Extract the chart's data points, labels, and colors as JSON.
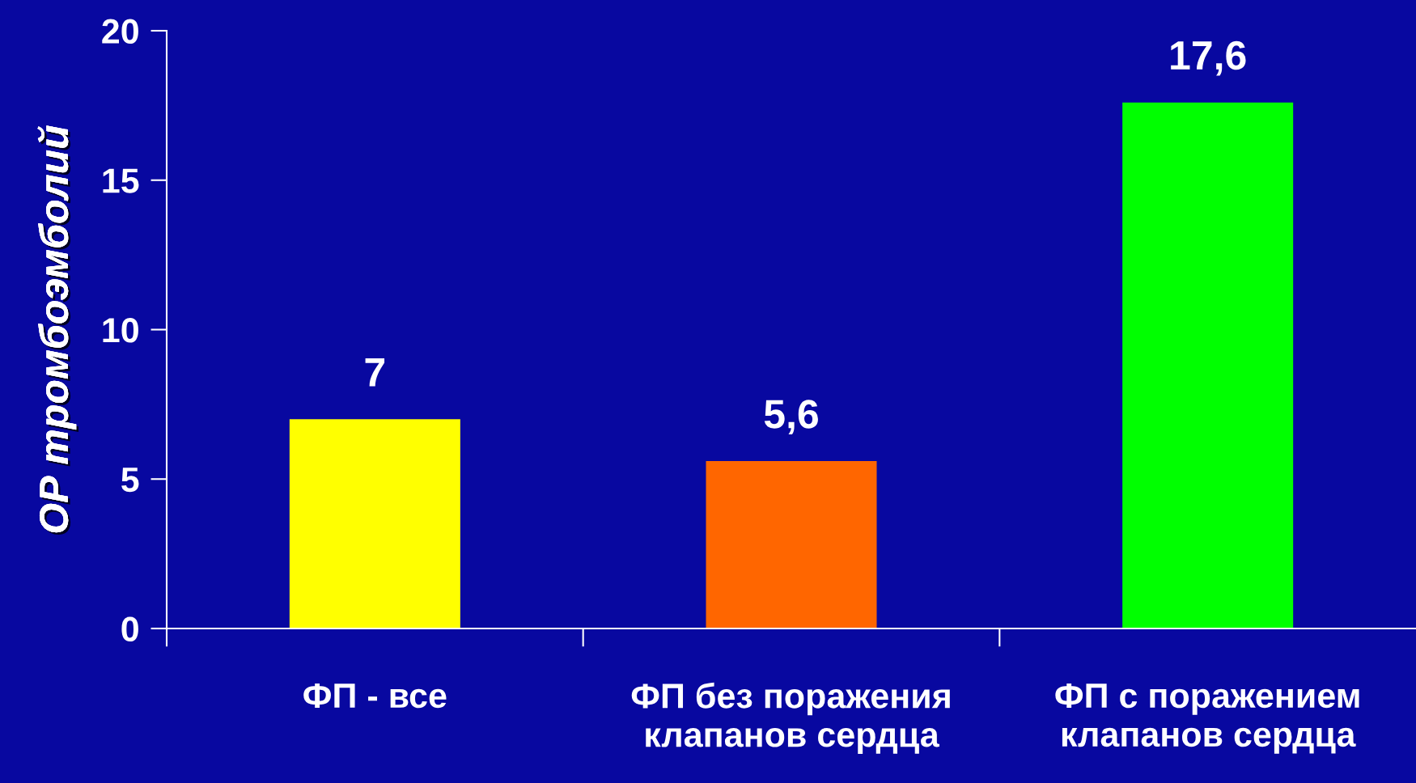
{
  "chart_data": {
    "type": "bar",
    "ylabel": "ОР тромбоэмболий",
    "categories": [
      "ФП - все",
      "ФП без поражения\nклапанов сердца",
      "ФП с поражением\nклапанов сердца"
    ],
    "values": [
      7,
      5.6,
      17.6
    ],
    "colors": [
      "#ffff00",
      "#ff6600",
      "#00ff00"
    ],
    "value_labels": [
      "7",
      "5,6",
      "17,6"
    ],
    "ylim": [
      0,
      20
    ],
    "yticks": [
      0,
      5,
      10,
      15,
      20
    ],
    "grid": false
  }
}
